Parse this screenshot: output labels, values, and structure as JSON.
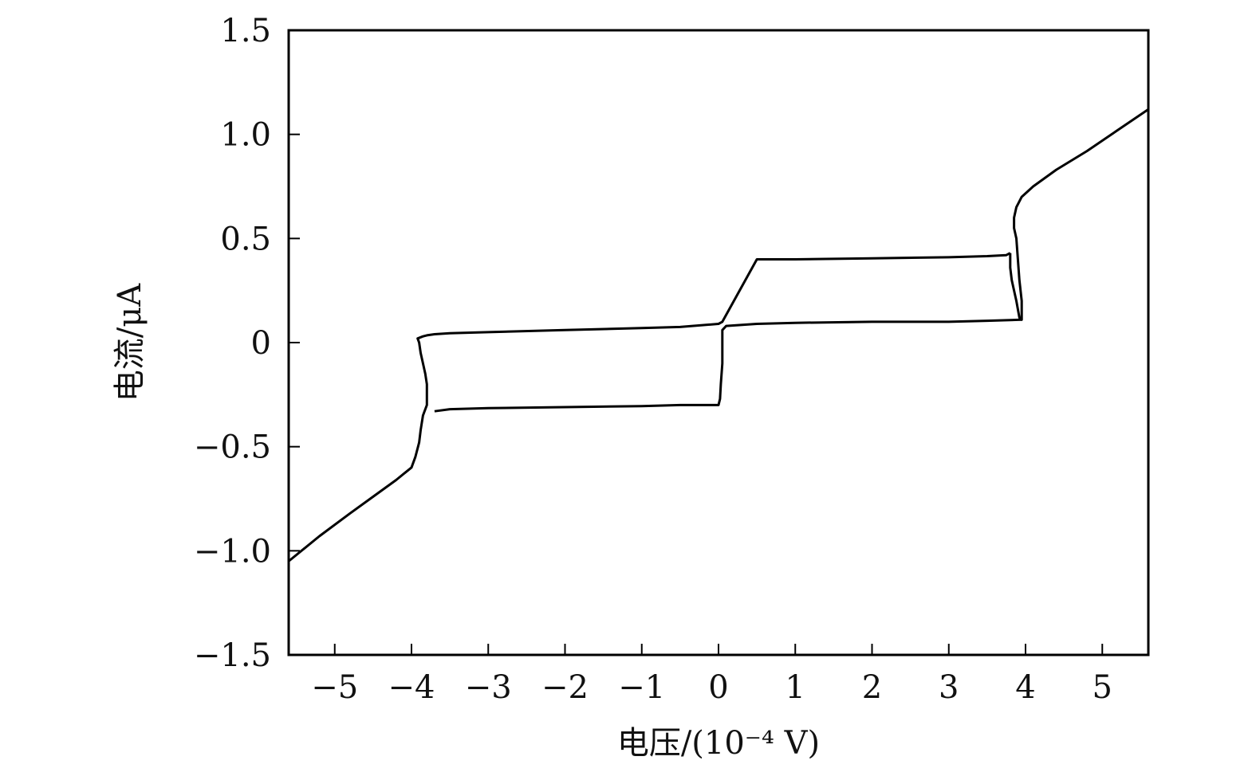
{
  "chart_data": {
    "type": "line",
    "title": "",
    "xlabel": "电压/(10⁻⁴ V)",
    "ylabel": "电流/μA",
    "xlim": [
      -5.6,
      5.6
    ],
    "ylim": [
      -1.5,
      1.5
    ],
    "xticks": [
      -5,
      -4,
      -3,
      -2,
      -1,
      0,
      1,
      2,
      3,
      4,
      5
    ],
    "xtick_labels": [
      "−5",
      "−4",
      "−3",
      "−2",
      "−1",
      "0",
      "1",
      "2",
      "3",
      "4",
      "5"
    ],
    "yticks": [
      -1.5,
      -1.0,
      -0.5,
      0,
      0.5,
      1.0,
      1.5
    ],
    "ytick_labels": [
      "−1.5",
      "−1.0",
      "−0.5",
      "0",
      "0.5",
      "1.0",
      "1.5"
    ],
    "grid": false,
    "legend": "none",
    "line_color": "#000000",
    "series": [
      {
        "x": [
          -5.6,
          -5.2,
          -4.8,
          -4.5,
          -4.2,
          -4.0,
          -3.95,
          -3.9,
          -3.88,
          -3.85,
          -3.8,
          -3.8,
          -3.82,
          -3.85,
          -3.88,
          -3.9,
          -3.92,
          -3.85,
          -3.8,
          -3.7,
          -3.5,
          -3.0,
          -2.0,
          -1.0,
          -0.5,
          0.0,
          0.05,
          0.5,
          1.0,
          2.0,
          3.0,
          3.5,
          3.75,
          3.8
        ],
        "y": [
          -1.05,
          -0.93,
          -0.82,
          -0.74,
          -0.66,
          -0.6,
          -0.55,
          -0.48,
          -0.42,
          -0.35,
          -0.3,
          -0.2,
          -0.15,
          -0.1,
          -0.05,
          0.0,
          0.02,
          0.03,
          0.035,
          0.04,
          0.045,
          0.05,
          0.06,
          0.07,
          0.075,
          0.09,
          0.1,
          0.4,
          0.4,
          0.405,
          0.41,
          0.415,
          0.42,
          0.43
        ]
      },
      {
        "x": [
          3.8,
          3.8,
          3.82,
          3.85,
          3.88,
          3.9,
          3.92,
          3.95,
          3.95,
          3.92,
          3.9,
          3.88,
          3.85,
          3.85,
          3.88,
          3.95,
          4.1,
          4.4,
          4.8,
          5.2,
          5.6
        ],
        "y": [
          0.43,
          0.36,
          0.3,
          0.25,
          0.2,
          0.16,
          0.12,
          0.11,
          0.2,
          0.3,
          0.4,
          0.5,
          0.55,
          0.6,
          0.65,
          0.7,
          0.75,
          0.83,
          0.92,
          1.02,
          1.12
        ]
      },
      {
        "x": [
          3.95,
          3.5,
          3.0,
          2.0,
          1.0,
          0.5,
          0.1,
          0.05,
          0.05,
          0.03,
          0.02,
          0.0,
          -0.5,
          -1.0,
          -2.0,
          -3.0,
          -3.5,
          -3.7
        ],
        "y": [
          0.11,
          0.105,
          0.1,
          0.1,
          0.095,
          0.09,
          0.08,
          0.06,
          -0.1,
          -0.2,
          -0.27,
          -0.3,
          -0.3,
          -0.305,
          -0.31,
          -0.315,
          -0.32,
          -0.33
        ]
      }
    ]
  }
}
